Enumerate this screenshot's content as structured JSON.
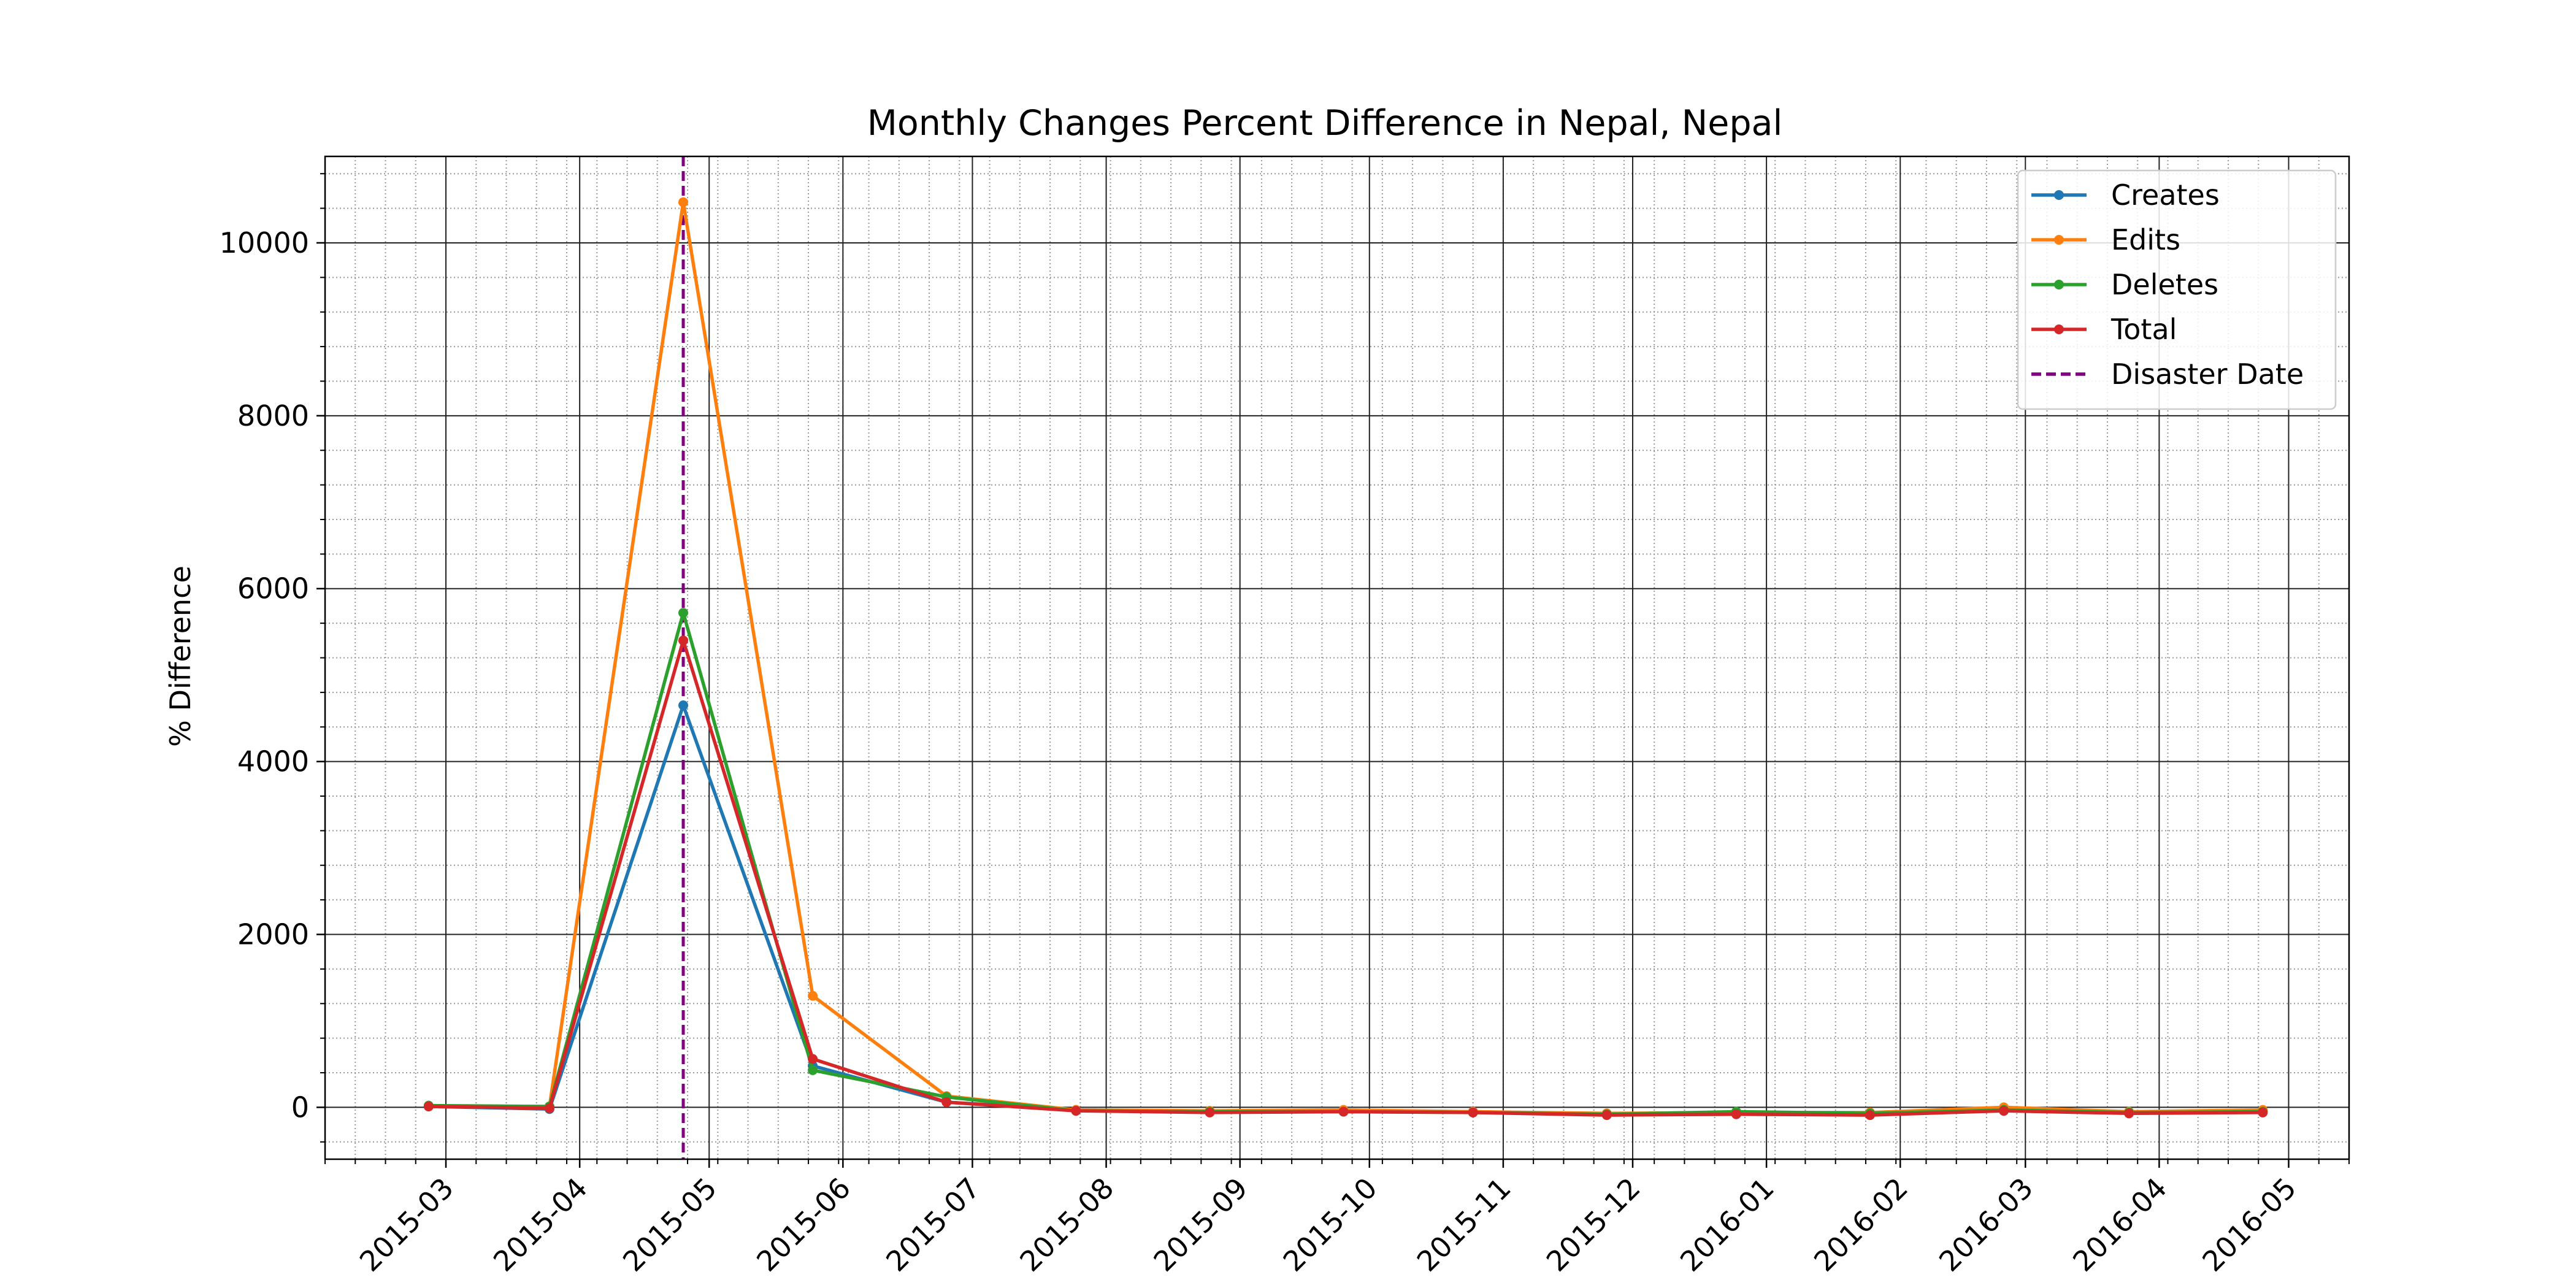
{
  "chart_data": {
    "type": "line",
    "title": "Monthly Changes Percent Difference in Nepal, Nepal",
    "xlabel": "",
    "ylabel": "% Difference",
    "x_ticks": [
      "2015-03",
      "2015-04",
      "2015-05",
      "2015-06",
      "2015-07",
      "2015-08",
      "2015-09",
      "2015-10",
      "2015-11",
      "2015-12",
      "2016-01",
      "2016-02",
      "2016-03",
      "2016-04",
      "2016-05"
    ],
    "y_ticks": [
      0,
      2000,
      4000,
      6000,
      8000,
      10000
    ],
    "xlim": [
      "2015-02-01",
      "2016-05-15"
    ],
    "ylim": [
      -600,
      11000
    ],
    "grid": true,
    "legend_position": "top-right",
    "x": [
      "2015-02-25",
      "2015-03-25",
      "2015-04-25",
      "2015-05-25",
      "2015-06-25",
      "2015-07-25",
      "2015-08-25",
      "2015-09-25",
      "2015-10-25",
      "2015-11-25",
      "2015-12-25",
      "2016-01-25",
      "2016-02-25",
      "2016-03-25",
      "2016-04-25"
    ],
    "series": [
      {
        "name": "Creates",
        "color": "#1f77b4",
        "values": [
          10,
          -20,
          4650,
          480,
          60,
          -30,
          -50,
          -40,
          -50,
          -80,
          -60,
          -80,
          -40,
          -60,
          -50
        ]
      },
      {
        "name": "Edits",
        "color": "#ff7f0e",
        "values": [
          15,
          10,
          10470,
          1290,
          130,
          -30,
          -40,
          -30,
          -50,
          -70,
          -60,
          -60,
          0,
          -50,
          -30
        ]
      },
      {
        "name": "Deletes",
        "color": "#2ca02c",
        "values": [
          20,
          10,
          5720,
          430,
          120,
          -40,
          -50,
          -50,
          -60,
          -80,
          -50,
          -70,
          -30,
          -60,
          -50
        ]
      },
      {
        "name": "Total",
        "color": "#d62728",
        "values": [
          10,
          -10,
          5400,
          560,
          60,
          -40,
          -60,
          -50,
          -60,
          -90,
          -80,
          -90,
          -40,
          -70,
          -60
        ]
      }
    ],
    "vline": {
      "name": "Disaster Date",
      "x": "2015-04-25",
      "color": "#800080",
      "style": "dashed"
    }
  }
}
